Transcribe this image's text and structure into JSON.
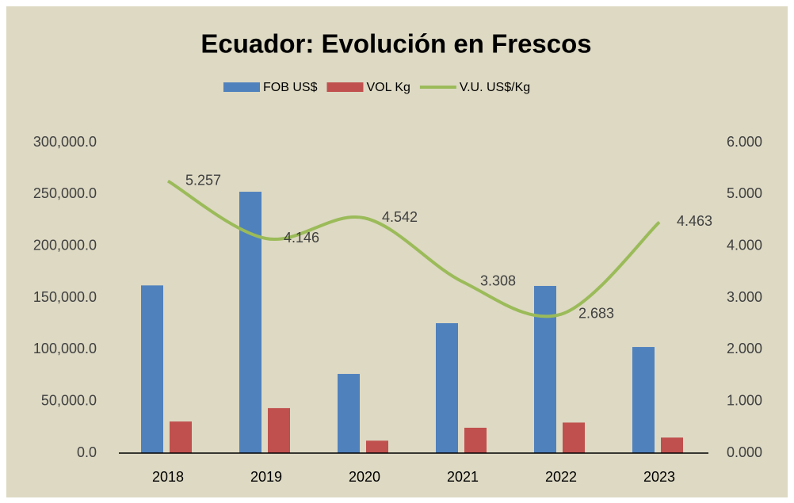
{
  "chart_data": {
    "type": "bar_line",
    "title": "Ecuador: Evolución en Frescos",
    "categories": [
      "2018",
      "2019",
      "2020",
      "2021",
      "2022",
      "2023"
    ],
    "series": [
      {
        "name": "FOB US$",
        "color": "#4f81bd",
        "type": "bar",
        "values": [
          162000,
          252500,
          76500,
          125500,
          161500,
          102500
        ]
      },
      {
        "name": "VOL Kg",
        "color": "#c0504d",
        "type": "bar",
        "values": [
          30500,
          43500,
          12000,
          24500,
          29500,
          15000
        ]
      },
      {
        "name": "V.U. US$/Kg",
        "color": "#9bbb59",
        "type": "line",
        "axis": "y2",
        "values": [
          5.257,
          4.146,
          4.542,
          3.308,
          2.683,
          4.463
        ]
      }
    ],
    "ylim": [
      0,
      300000
    ],
    "yticks": [
      {
        "value": 0,
        "label": "0.0"
      },
      {
        "value": 50000,
        "label": "50,000.0"
      },
      {
        "value": 100000,
        "label": "100,000.0"
      },
      {
        "value": 150000,
        "label": "150,000.0"
      },
      {
        "value": 200000,
        "label": "200,000.0"
      },
      {
        "value": 250000,
        "label": "250,000.0"
      },
      {
        "value": 300000,
        "label": "300,000.0"
      }
    ],
    "y2lim": [
      0,
      6
    ],
    "y2ticks": [
      {
        "value": 0,
        "label": "0.000"
      },
      {
        "value": 1,
        "label": "1.000"
      },
      {
        "value": 2,
        "label": "2.000"
      },
      {
        "value": 3,
        "label": "3.000"
      },
      {
        "value": 4,
        "label": "4.000"
      },
      {
        "value": 5,
        "label": "5.000"
      },
      {
        "value": 6,
        "label": "6.000"
      }
    ],
    "legend": "top",
    "grid": false
  }
}
